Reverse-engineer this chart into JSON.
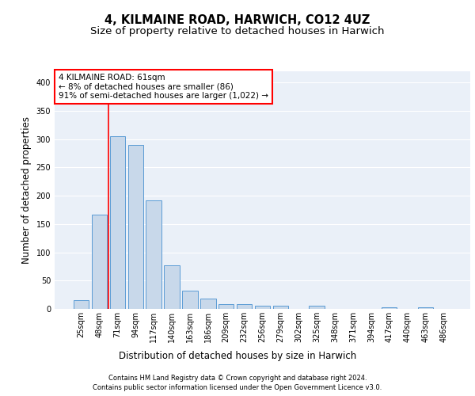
{
  "title1": "4, KILMAINE ROAD, HARWICH, CO12 4UZ",
  "title2": "Size of property relative to detached houses in Harwich",
  "xlabel": "Distribution of detached houses by size in Harwich",
  "ylabel": "Number of detached properties",
  "footnote1": "Contains HM Land Registry data © Crown copyright and database right 2024.",
  "footnote2": "Contains public sector information licensed under the Open Government Licence v3.0.",
  "categories": [
    "25sqm",
    "48sqm",
    "71sqm",
    "94sqm",
    "117sqm",
    "140sqm",
    "163sqm",
    "186sqm",
    "209sqm",
    "232sqm",
    "256sqm",
    "279sqm",
    "302sqm",
    "325sqm",
    "348sqm",
    "371sqm",
    "394sqm",
    "417sqm",
    "440sqm",
    "463sqm",
    "486sqm"
  ],
  "values": [
    15,
    167,
    305,
    290,
    192,
    77,
    32,
    18,
    9,
    9,
    5,
    5,
    0,
    5,
    0,
    0,
    0,
    3,
    0,
    3,
    0
  ],
  "bar_color": "#c8d8ea",
  "bar_edge_color": "#5b9bd5",
  "property_line_x": 1.5,
  "annotation_line1": "4 KILMAINE ROAD: 61sqm",
  "annotation_line2": "← 8% of detached houses are smaller (86)",
  "annotation_line3": "91% of semi-detached houses are larger (1,022) →",
  "annotation_box_color": "white",
  "annotation_box_edge": "red",
  "vline_color": "red",
  "ylim": [
    0,
    420
  ],
  "yticks": [
    0,
    50,
    100,
    150,
    200,
    250,
    300,
    350,
    400
  ],
  "background_color": "#eaf0f8",
  "grid_color": "white",
  "title1_fontsize": 10.5,
  "title2_fontsize": 9.5,
  "xlabel_fontsize": 8.5,
  "ylabel_fontsize": 8.5,
  "tick_fontsize": 7,
  "annotation_fontsize": 7.5,
  "footnote_fontsize": 6
}
